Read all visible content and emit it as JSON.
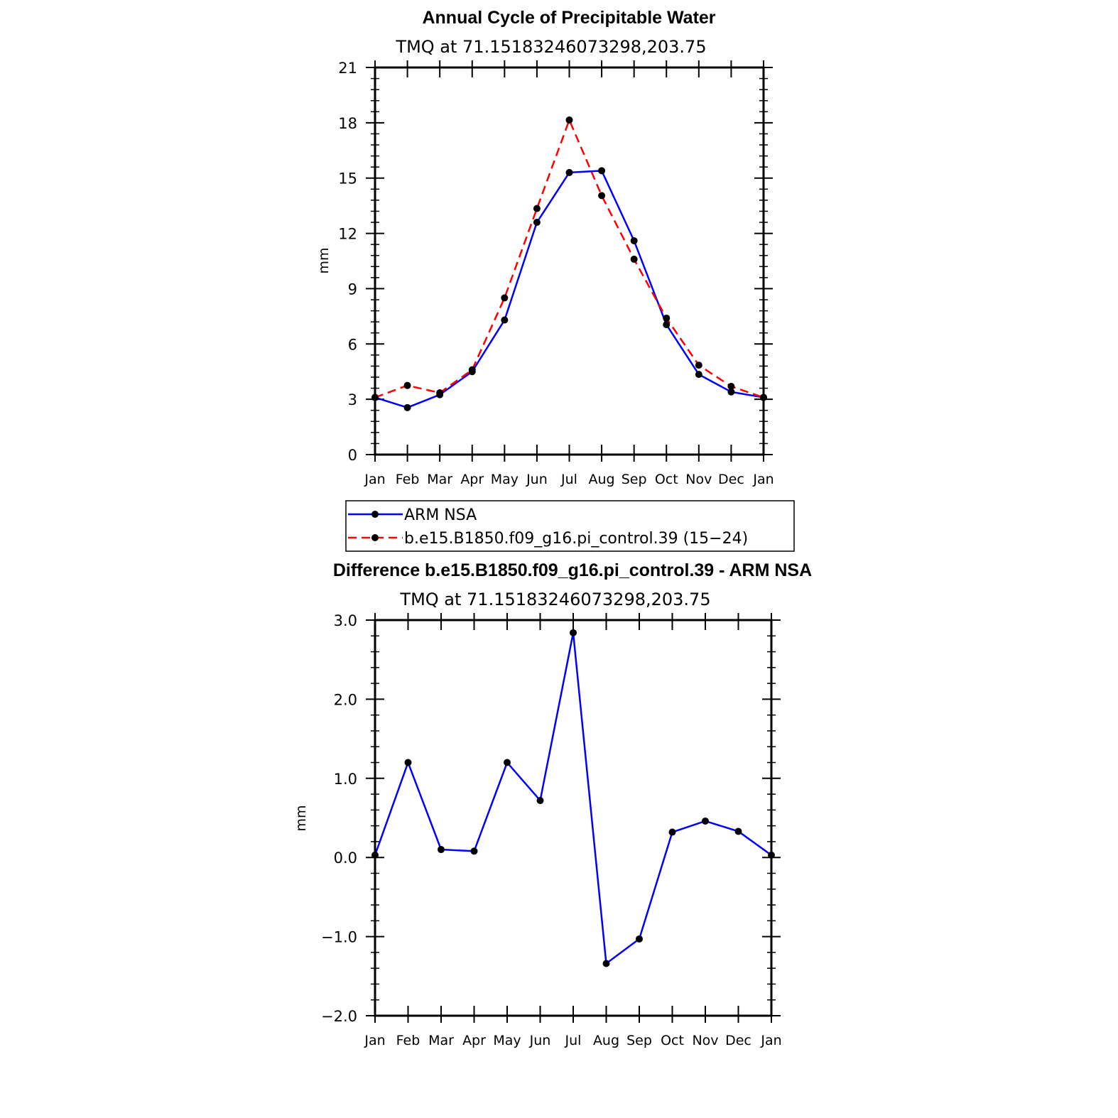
{
  "chart_data": [
    {
      "type": "line",
      "title": "Annual Cycle of Precipitable Water",
      "subtitle": "TMQ at 71.15183246073298,203.75",
      "ylabel": "mm",
      "xlabel": "",
      "categories": [
        "Jan",
        "Feb",
        "Mar",
        "Apr",
        "May",
        "Jun",
        "Jul",
        "Aug",
        "Sep",
        "Oct",
        "Nov",
        "Dec",
        "Jan"
      ],
      "ylim": [
        0,
        21
      ],
      "yticks": [
        0,
        3,
        6,
        9,
        12,
        15,
        18,
        21
      ],
      "ytick_labels": [
        "0",
        "3",
        "6",
        "9",
        "12",
        "15",
        "18",
        "21"
      ],
      "series": [
        {
          "name": "ARM NSA",
          "color": "#0000ff",
          "dash": "solid",
          "values": [
            3.1,
            2.55,
            3.25,
            4.5,
            7.3,
            12.6,
            15.3,
            15.4,
            11.6,
            7.05,
            4.35,
            3.4,
            3.1
          ]
        },
        {
          "name": "b.e15.B1850.f09_g16.pi_control.39 (15-24)",
          "color": "#ff0000",
          "dash": "dashed",
          "values": [
            3.1,
            3.75,
            3.35,
            4.6,
            8.5,
            13.35,
            18.15,
            14.05,
            10.6,
            7.4,
            4.85,
            3.7,
            3.1
          ]
        }
      ],
      "legend_labels": [
        "ARM NSA",
        "b.e15.B1850.f09_g16.pi_control.39 (15−24)"
      ]
    },
    {
      "type": "line",
      "title": "Difference b.e15.B1850.f09_g16.pi_control.39 - ARM NSA",
      "subtitle": "TMQ at 71.15183246073298,203.75",
      "ylabel": "mm",
      "xlabel": "",
      "categories": [
        "Jan",
        "Feb",
        "Mar",
        "Apr",
        "May",
        "Jun",
        "Jul",
        "Aug",
        "Sep",
        "Oct",
        "Nov",
        "Dec",
        "Jan"
      ],
      "ylim": [
        -2.0,
        3.0
      ],
      "yticks": [
        -2.0,
        -1.0,
        0.0,
        1.0,
        2.0,
        3.0
      ],
      "ytick_labels": [
        "−2.0",
        "−1.0",
        "0.0",
        "1.0",
        "2.0",
        "3.0"
      ],
      "series": [
        {
          "name": "Difference",
          "color": "#0000ff",
          "dash": "solid",
          "values": [
            0.03,
            1.2,
            0.1,
            0.08,
            1.2,
            0.72,
            2.84,
            -1.34,
            -1.03,
            0.32,
            0.46,
            0.33,
            0.03
          ]
        }
      ]
    }
  ]
}
